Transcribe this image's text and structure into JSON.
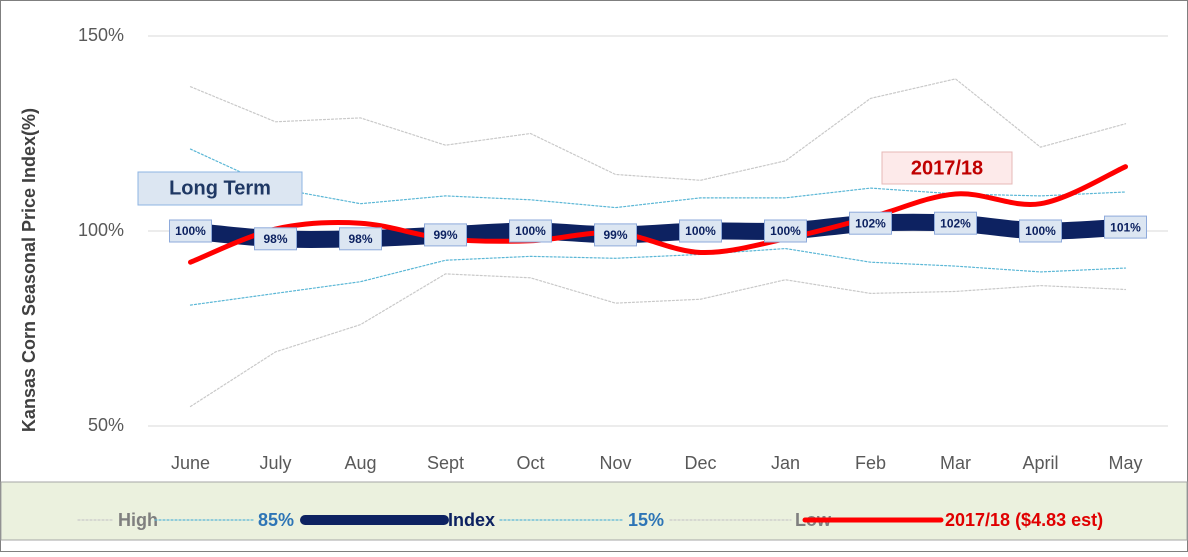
{
  "chart_data": {
    "type": "line",
    "y_label": "Kansas Corn Seasonal Price Index(%)",
    "annotations": [
      "Long Term",
      "2017/18"
    ],
    "categories": [
      "June",
      "July",
      "Aug",
      "Sept",
      "Oct",
      "Nov",
      "Dec",
      "Jan",
      "Feb",
      "Mar",
      "April",
      "May"
    ],
    "ylim": [
      50,
      150
    ],
    "yticks": [
      {
        "value": 50,
        "label": "50%"
      },
      {
        "value": 100,
        "label": "100%"
      },
      {
        "value": 150,
        "label": "150%"
      }
    ],
    "grid": true,
    "legend": "bottom",
    "series": [
      {
        "name": "High",
        "color": "#c9c9c9",
        "values": [
          137,
          128,
          129,
          122,
          125,
          114.5,
          113,
          118,
          134,
          139,
          121.5,
          127.5
        ]
      },
      {
        "name": "85%",
        "color": "#5bb7d6",
        "values": [
          121,
          111,
          107,
          109,
          108,
          106,
          108.5,
          108.5,
          111,
          109.5,
          109,
          110
        ]
      },
      {
        "name": "Index",
        "color": "#0d2261",
        "values": [
          100,
          98,
          98,
          99,
          100,
          99,
          100,
          100,
          102,
          102,
          100,
          101
        ],
        "value_labels": [
          "100%",
          "98%",
          "98%",
          "99%",
          "100%",
          "99%",
          "100%",
          "100%",
          "102%",
          "102%",
          "100%",
          "101%"
        ]
      },
      {
        "name": "15%",
        "color": "#5bb7d6",
        "values": [
          81,
          84,
          87,
          92.5,
          93.5,
          93,
          94,
          95.5,
          92,
          91,
          89.5,
          90.5
        ]
      },
      {
        "name": "Low",
        "color": "#c9c9c9",
        "values": [
          55,
          69,
          76,
          89,
          88,
          81.5,
          82.5,
          87.5,
          84,
          84.5,
          86,
          85
        ]
      },
      {
        "name": "2017/18 ($4.83 est)",
        "color": "#ff0000",
        "values": [
          92,
          100.5,
          102,
          98,
          97.5,
          99.5,
          94.5,
          98,
          103.5,
          109.5,
          107,
          116.5
        ]
      }
    ]
  }
}
